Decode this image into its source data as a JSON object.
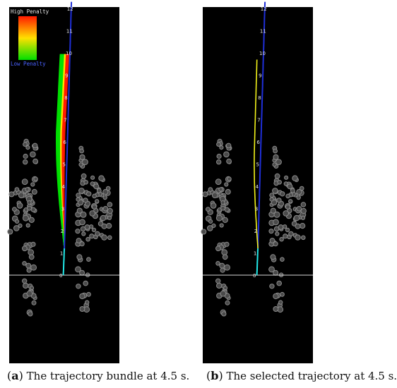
{
  "figure": {
    "colors": {
      "background": "#000000",
      "reference_path": "#1f2fd8",
      "selected_trajectory": "#f2f21a",
      "near_segment": "#22e8e8",
      "obstacle": "#8a8a8a",
      "baseline": "#d8d8d8",
      "tick_label": "#e6e6e6"
    },
    "axis_ticks": [
      "12",
      "11",
      "10",
      "9",
      "8",
      "7",
      "6",
      "5",
      "4",
      "3",
      "2",
      "1",
      "0"
    ],
    "legend": {
      "high_label": "High Penalty",
      "low_label": "Low Penalty",
      "high_color": "#ff1a00",
      "mid_color": "#ffe000",
      "low_color": "#00e000"
    }
  },
  "panels": [
    {
      "id": "a",
      "caption_label": "(a)",
      "caption_letter": "a",
      "caption_text": "The trajectory bundle at 4.5 s.",
      "shows_legend": true,
      "shows_bundle": true
    },
    {
      "id": "b",
      "caption_label": "(b)",
      "caption_letter": "b",
      "caption_text": "The selected trajectory at 4.5 s.",
      "shows_legend": false,
      "shows_bundle": false
    }
  ]
}
